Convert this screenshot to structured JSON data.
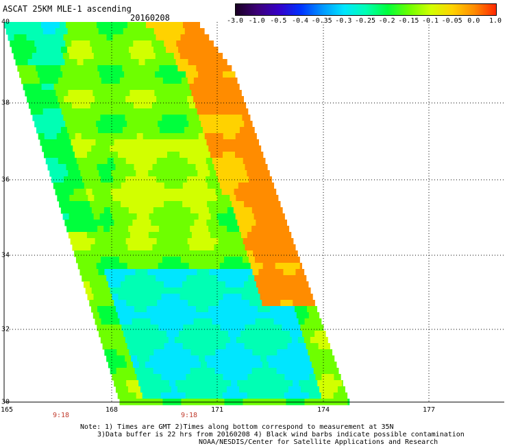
{
  "title": "ASCAT 25KM MLE-1 ascending",
  "date": "20160208",
  "colorbar": {
    "labels": [
      "-3.0",
      "-1.0",
      "-0.5",
      "-0.4",
      "-0.35",
      "-0.3",
      "-0.25",
      "-0.2",
      "-0.15",
      "-0.1",
      "-0.05",
      "0.0",
      "1.0"
    ],
    "colors": [
      "#1a0024",
      "#3c0078",
      "#3500c8",
      "#0032ff",
      "#0096ff",
      "#00e6ff",
      "#00ffb4",
      "#00ff3c",
      "#6eff00",
      "#d2ff00",
      "#ffd200",
      "#ff8c00",
      "#ff2800"
    ]
  },
  "lat_labels": [
    "40",
    "38",
    "36",
    "34",
    "32",
    "30"
  ],
  "lon_labels": [
    "165",
    "168",
    "171",
    "174",
    "177"
  ],
  "time_labels": [
    "9:18",
    "9:18"
  ],
  "notes": {
    "line1": "Note: 1) Times are GMT 2)Times along bottom correspond to measurement at 35N",
    "line2": "3)Data buffer is 22 hrs from 20160208 4) Black wind barbs indicate possible contamination",
    "line3": "NOAA/NESDIS/Center for Satellite Applications and Research"
  },
  "map": {
    "lat_range": [
      30,
      40
    ],
    "lon_range": [
      165,
      178.5
    ],
    "field": "MLE-1",
    "swath": "ascending"
  }
}
